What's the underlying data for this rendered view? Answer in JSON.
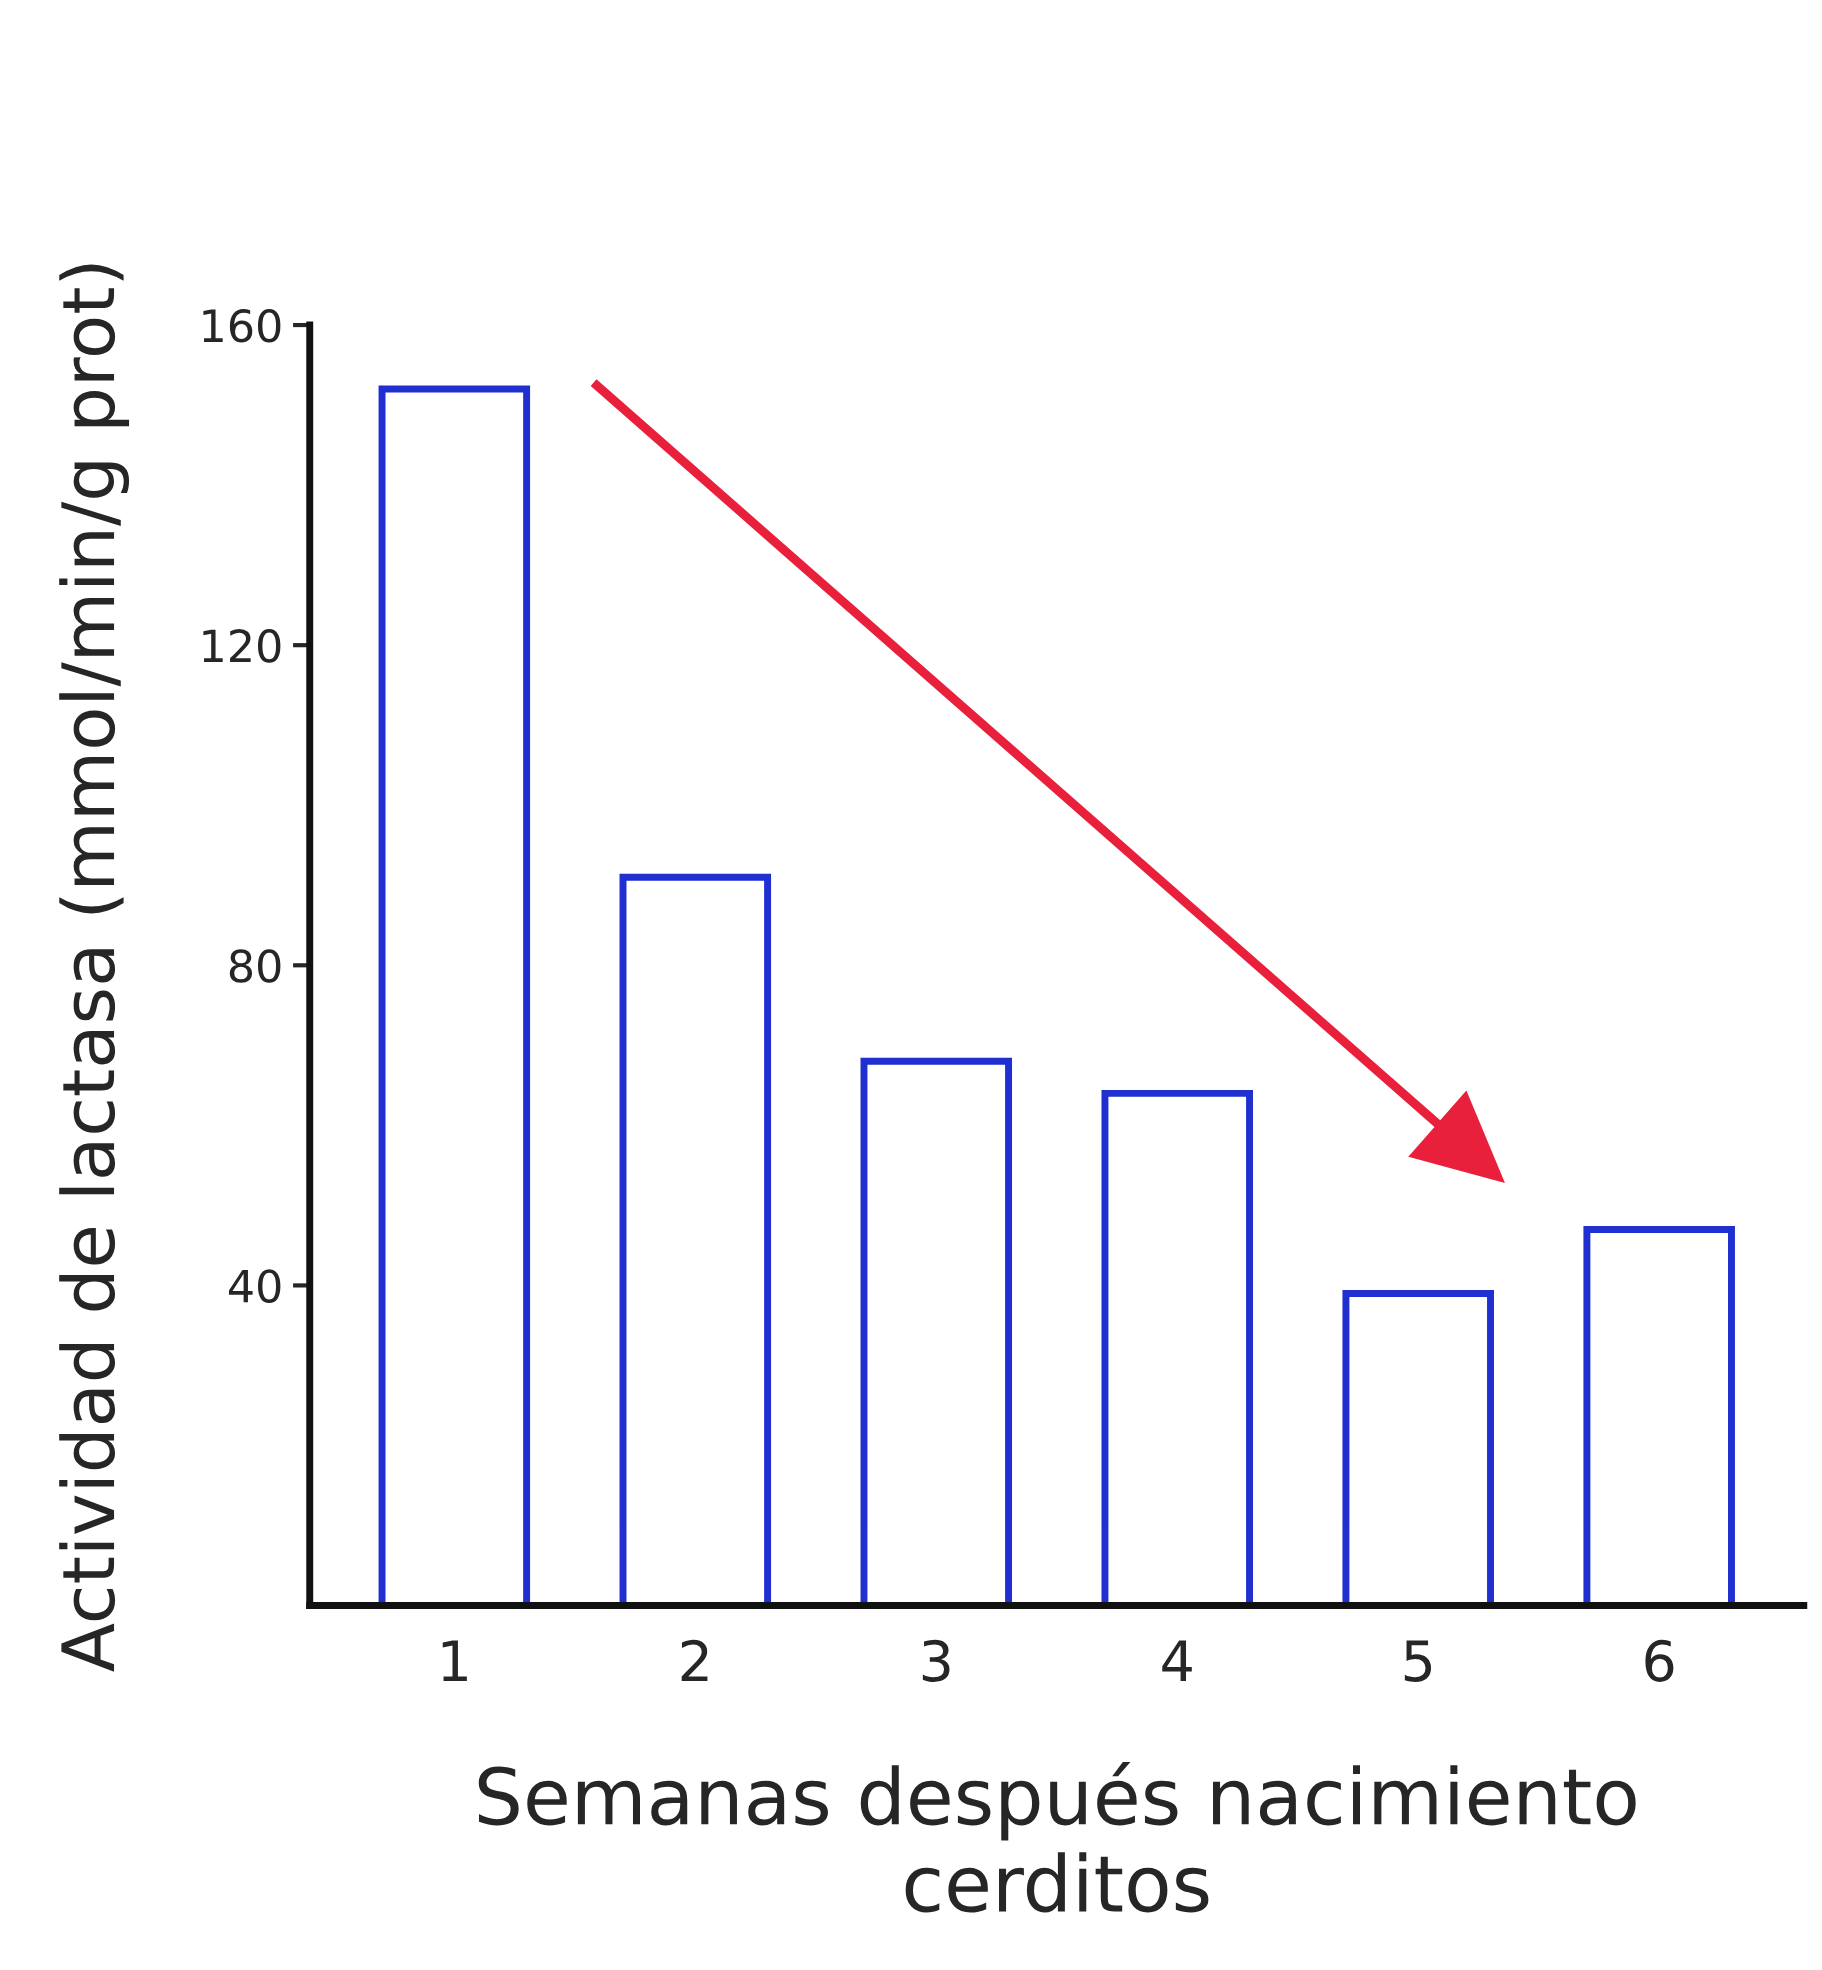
{
  "chart_data": {
    "type": "bar",
    "xlabel": "Semanas después nacimiento\ncerditos",
    "ylabel": "Actividad de lactasa (mmol/min/g prot)",
    "categories": [
      "1",
      "2",
      "3",
      "4",
      "5",
      "6"
    ],
    "values": [
      152,
      91,
      68,
      64,
      39,
      47
    ],
    "color": "#1f2fd0",
    "ylim": [
      0,
      160
    ],
    "yticks": [
      40,
      80,
      120,
      160
    ],
    "grid": false,
    "legend": false
  }
}
